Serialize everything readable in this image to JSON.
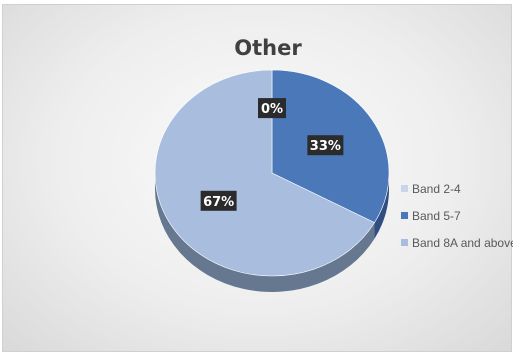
{
  "chart_data": {
    "type": "pie",
    "title": "Other",
    "categories": [
      "Band 2-4",
      "Band 5-7",
      "Band 8A and above"
    ],
    "values": [
      0,
      33,
      67
    ],
    "data_labels": [
      "0%",
      "33%",
      "67%"
    ],
    "colors": [
      "#c9d6ea",
      "#4a78b8",
      "#a9bedf"
    ],
    "side_colors": [
      "#8796ad",
      "#2e4f80",
      "#66788f"
    ],
    "legend_position": "right",
    "style": "3d-pie"
  }
}
